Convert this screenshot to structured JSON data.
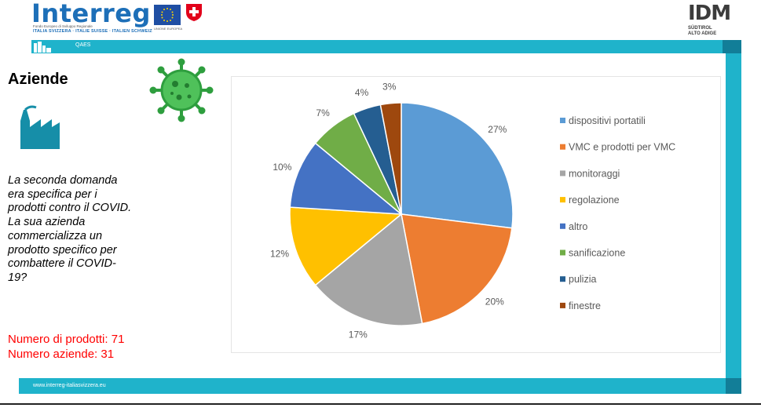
{
  "header": {
    "logo_text": "Interreg",
    "logo_sub1": "Fondo Europeo di Sviluppo Regionale",
    "logo_sub2": "ITALIA SVIZZERA · ITALIE SUISSE · ITALIEN SCHWEIZ",
    "eu_sub": "UNIONE EUROPEA",
    "idm_logo": "IDM",
    "idm_sub1": "SÜDTIROL",
    "idm_sub2": "ALTO ADIGE",
    "band_label": "QAES"
  },
  "footer": {
    "url": "www.interreg-italiasvizzera.eu"
  },
  "left": {
    "heading": "Aziende",
    "question": "La seconda domanda\nera specifica per i\nprodotti contro il COVID.\nLa sua azienda\ncommercializza un\nprodotto specifico per\ncombattere il COVID-\n19?",
    "product_count": "Numero di prodotti: 71",
    "company_count": "Numero aziende: 31"
  },
  "colors": {
    "accent": "#1fb3cb",
    "accent_dark": "#127e98",
    "highlight": "#ff0000"
  },
  "chart_data": {
    "type": "pie",
    "title": "",
    "legend_position": "right",
    "slices": [
      {
        "label": "dispositivi portatili",
        "value": 27,
        "display": "27%",
        "color": "#5b9bd5"
      },
      {
        "label": "VMC e prodotti per VMC",
        "value": 20,
        "display": "20%",
        "color": "#ed7d31"
      },
      {
        "label": "monitoraggi",
        "value": 17,
        "display": "17%",
        "color": "#a5a5a5"
      },
      {
        "label": "regolazione",
        "value": 12,
        "display": "12%",
        "color": "#ffc000"
      },
      {
        "label": "altro",
        "value": 10,
        "display": "10%",
        "color": "#4472c4"
      },
      {
        "label": "sanificazione",
        "value": 7,
        "display": "7%",
        "color": "#70ad47"
      },
      {
        "label": "pulizia",
        "value": 4,
        "display": "4%",
        "color": "#255e91"
      },
      {
        "label": "finestre",
        "value": 3,
        "display": "3%",
        "color": "#9e480e"
      }
    ]
  }
}
